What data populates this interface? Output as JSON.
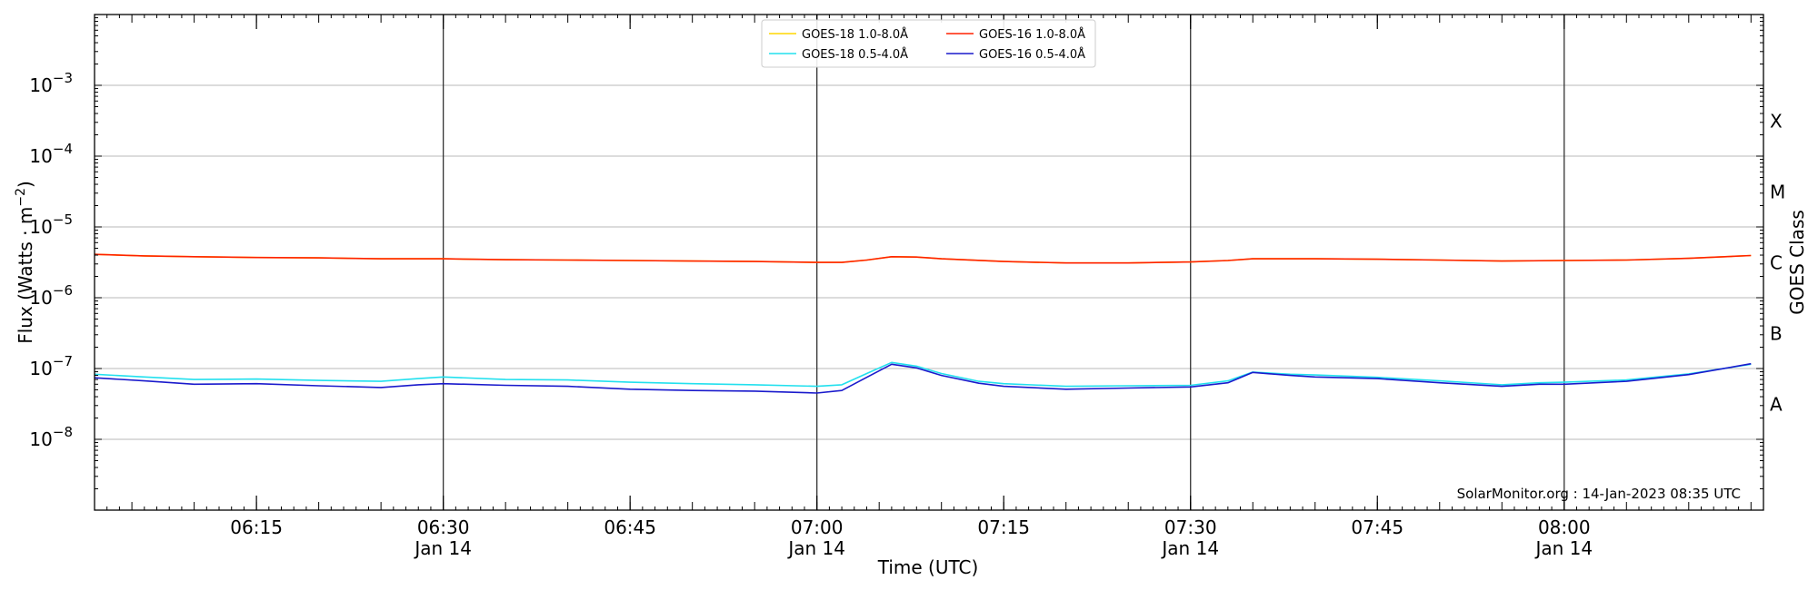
{
  "chart_data": {
    "type": "line",
    "xlabel": "Time (UTC)",
    "ylabel_main": "Flux (Watts · m",
    "ylabel_sup": "−2",
    "ylabel_close": ")",
    "right_label": "GOES Class",
    "credit": "SolarMonitor.org : 14-Jan-2023 08:35 UTC",
    "y_scale": "log",
    "ylim": [
      1e-09,
      0.01
    ],
    "xlim": [
      "06:02",
      "08:16"
    ],
    "grid": "horizontal at decades",
    "legend_placement": "top-center",
    "y_ticks": [
      {
        "base": "10",
        "exp": "−3",
        "value": 0.001
      },
      {
        "base": "10",
        "exp": "−4",
        "value": 0.0001
      },
      {
        "base": "10",
        "exp": "−5",
        "value": 1e-05
      },
      {
        "base": "10",
        "exp": "−6",
        "value": 1e-06
      },
      {
        "base": "10",
        "exp": "−7",
        "value": 1e-07
      },
      {
        "base": "10",
        "exp": "−8",
        "value": 1e-08
      }
    ],
    "x_ticks": [
      {
        "time": "06:15",
        "label": "06:15",
        "sub": ""
      },
      {
        "time": "06:30",
        "label": "06:30",
        "sub": "Jan 14"
      },
      {
        "time": "06:45",
        "label": "06:45",
        "sub": ""
      },
      {
        "time": "07:00",
        "label": "07:00",
        "sub": "Jan 14"
      },
      {
        "time": "07:15",
        "label": "07:15",
        "sub": ""
      },
      {
        "time": "07:30",
        "label": "07:30",
        "sub": "Jan 14"
      },
      {
        "time": "07:45",
        "label": "07:45",
        "sub": ""
      },
      {
        "time": "08:00",
        "label": "08:00",
        "sub": "Jan 14"
      }
    ],
    "vertical_lines": [
      "06:30",
      "07:00",
      "07:30",
      "08:00"
    ],
    "classes": [
      {
        "label": "X",
        "value": 0.00031
      },
      {
        "label": "M",
        "value": 3.1e-05
      },
      {
        "label": "C",
        "value": 3.1e-06
      },
      {
        "label": "B",
        "value": 3.1e-07
      },
      {
        "label": "A",
        "value": 3.1e-08
      }
    ],
    "series": [
      {
        "name": "GOES-18 1.0-8.0Å",
        "color": "#ffd700",
        "points": [
          [
            "06:02",
            4.1e-06
          ],
          [
            "06:06",
            3.9e-06
          ],
          [
            "06:10",
            3.8e-06
          ],
          [
            "06:15",
            3.7e-06
          ],
          [
            "06:20",
            3.65e-06
          ],
          [
            "06:25",
            3.55e-06
          ],
          [
            "06:30",
            3.55e-06
          ],
          [
            "06:35",
            3.45e-06
          ],
          [
            "06:40",
            3.4e-06
          ],
          [
            "06:45",
            3.35e-06
          ],
          [
            "06:50",
            3.3e-06
          ],
          [
            "06:55",
            3.25e-06
          ],
          [
            "07:00",
            3.15e-06
          ],
          [
            "07:02",
            3.15e-06
          ],
          [
            "07:04",
            3.4e-06
          ],
          [
            "07:06",
            3.8e-06
          ],
          [
            "07:08",
            3.75e-06
          ],
          [
            "07:10",
            3.55e-06
          ],
          [
            "07:15",
            3.25e-06
          ],
          [
            "07:20",
            3.1e-06
          ],
          [
            "07:25",
            3.1e-06
          ],
          [
            "07:30",
            3.2e-06
          ],
          [
            "07:33",
            3.35e-06
          ],
          [
            "07:35",
            3.55e-06
          ],
          [
            "07:40",
            3.55e-06
          ],
          [
            "07:45",
            3.5e-06
          ],
          [
            "07:50",
            3.4e-06
          ],
          [
            "07:55",
            3.3e-06
          ],
          [
            "08:00",
            3.35e-06
          ],
          [
            "08:05",
            3.4e-06
          ],
          [
            "08:10",
            3.6e-06
          ],
          [
            "08:15",
            3.95e-06
          ]
        ]
      },
      {
        "name": "GOES-16 1.0-8.0Å",
        "color": "#ff2200",
        "points": [
          [
            "06:02",
            4.1e-06
          ],
          [
            "06:06",
            3.9e-06
          ],
          [
            "06:10",
            3.8e-06
          ],
          [
            "06:15",
            3.7e-06
          ],
          [
            "06:20",
            3.65e-06
          ],
          [
            "06:25",
            3.55e-06
          ],
          [
            "06:30",
            3.55e-06
          ],
          [
            "06:35",
            3.45e-06
          ],
          [
            "06:40",
            3.4e-06
          ],
          [
            "06:45",
            3.35e-06
          ],
          [
            "06:50",
            3.3e-06
          ],
          [
            "06:55",
            3.25e-06
          ],
          [
            "07:00",
            3.15e-06
          ],
          [
            "07:02",
            3.15e-06
          ],
          [
            "07:04",
            3.4e-06
          ],
          [
            "07:06",
            3.8e-06
          ],
          [
            "07:08",
            3.75e-06
          ],
          [
            "07:10",
            3.55e-06
          ],
          [
            "07:15",
            3.25e-06
          ],
          [
            "07:20",
            3.1e-06
          ],
          [
            "07:25",
            3.1e-06
          ],
          [
            "07:30",
            3.2e-06
          ],
          [
            "07:33",
            3.35e-06
          ],
          [
            "07:35",
            3.55e-06
          ],
          [
            "07:40",
            3.55e-06
          ],
          [
            "07:45",
            3.5e-06
          ],
          [
            "07:50",
            3.4e-06
          ],
          [
            "07:55",
            3.3e-06
          ],
          [
            "08:00",
            3.35e-06
          ],
          [
            "08:05",
            3.4e-06
          ],
          [
            "08:10",
            3.6e-06
          ],
          [
            "08:15",
            3.95e-06
          ]
        ]
      },
      {
        "name": "GOES-18 0.5-4.0Å",
        "color": "#22e0ee",
        "points": [
          [
            "06:02",
            8.3e-08
          ],
          [
            "06:06",
            7.6e-08
          ],
          [
            "06:10",
            7e-08
          ],
          [
            "06:15",
            7.1e-08
          ],
          [
            "06:20",
            6.8e-08
          ],
          [
            "06:25",
            6.6e-08
          ],
          [
            "06:28",
            7.2e-08
          ],
          [
            "06:30",
            7.6e-08
          ],
          [
            "06:35",
            7e-08
          ],
          [
            "06:40",
            6.9e-08
          ],
          [
            "06:45",
            6.4e-08
          ],
          [
            "06:50",
            6.1e-08
          ],
          [
            "06:55",
            5.9e-08
          ],
          [
            "07:00",
            5.6e-08
          ],
          [
            "07:02",
            5.9e-08
          ],
          [
            "07:04",
            8.5e-08
          ],
          [
            "07:06",
            1.22e-07
          ],
          [
            "07:08",
            1.08e-07
          ],
          [
            "07:10",
            8.5e-08
          ],
          [
            "07:13",
            6.6e-08
          ],
          [
            "07:15",
            6.1e-08
          ],
          [
            "07:20",
            5.6e-08
          ],
          [
            "07:25",
            5.7e-08
          ],
          [
            "07:30",
            5.8e-08
          ],
          [
            "07:33",
            6.7e-08
          ],
          [
            "07:35",
            8.9e-08
          ],
          [
            "07:38",
            8.3e-08
          ],
          [
            "07:40",
            8.1e-08
          ],
          [
            "07:45",
            7.5e-08
          ],
          [
            "07:50",
            6.7e-08
          ],
          [
            "07:55",
            5.9e-08
          ],
          [
            "07:58",
            6.3e-08
          ],
          [
            "08:00",
            6.4e-08
          ],
          [
            "08:05",
            6.9e-08
          ],
          [
            "08:10",
            8.4e-08
          ],
          [
            "08:15",
            1.15e-07
          ]
        ]
      },
      {
        "name": "GOES-16 0.5-4.0Å",
        "color": "#1a1acc",
        "points": [
          [
            "06:02",
            7.4e-08
          ],
          [
            "06:06",
            6.7e-08
          ],
          [
            "06:10",
            6e-08
          ],
          [
            "06:15",
            6.1e-08
          ],
          [
            "06:20",
            5.7e-08
          ],
          [
            "06:25",
            5.4e-08
          ],
          [
            "06:28",
            5.9e-08
          ],
          [
            "06:30",
            6.1e-08
          ],
          [
            "06:35",
            5.8e-08
          ],
          [
            "06:40",
            5.6e-08
          ],
          [
            "06:45",
            5.1e-08
          ],
          [
            "06:50",
            4.9e-08
          ],
          [
            "06:55",
            4.8e-08
          ],
          [
            "07:00",
            4.5e-08
          ],
          [
            "07:02",
            4.9e-08
          ],
          [
            "07:04",
            7.5e-08
          ],
          [
            "07:06",
            1.15e-07
          ],
          [
            "07:08",
            1.02e-07
          ],
          [
            "07:10",
            8e-08
          ],
          [
            "07:13",
            6.2e-08
          ],
          [
            "07:15",
            5.6e-08
          ],
          [
            "07:20",
            5.1e-08
          ],
          [
            "07:25",
            5.3e-08
          ],
          [
            "07:30",
            5.5e-08
          ],
          [
            "07:33",
            6.3e-08
          ],
          [
            "07:35",
            8.8e-08
          ],
          [
            "07:38",
            8e-08
          ],
          [
            "07:40",
            7.6e-08
          ],
          [
            "07:45",
            7.2e-08
          ],
          [
            "07:50",
            6.3e-08
          ],
          [
            "07:55",
            5.6e-08
          ],
          [
            "07:58",
            6e-08
          ],
          [
            "08:00",
            6e-08
          ],
          [
            "08:05",
            6.6e-08
          ],
          [
            "08:10",
            8.2e-08
          ],
          [
            "08:15",
            1.17e-07
          ]
        ]
      }
    ],
    "legend_order": [
      0,
      2,
      1,
      3
    ]
  }
}
